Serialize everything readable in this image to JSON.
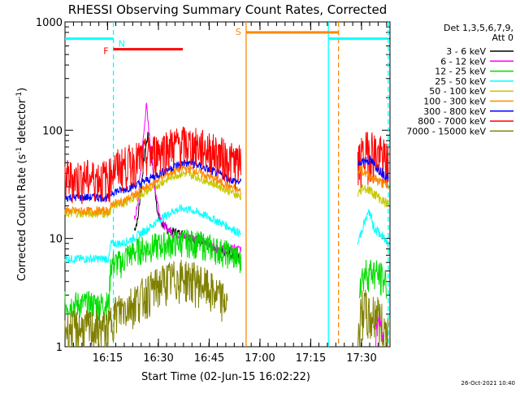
{
  "chart_data": {
    "type": "line",
    "title": "RHESSI Observing Summary Count Rates, Corrected",
    "xlabel": "Start Time (02-Jun-15 16:02:22)",
    "ylabel": "Corrected Count Rate (s-1 detector-1)",
    "ylabel_main": "Corrected Count Rate (s",
    "ylabel_mid": " detector",
    "ylabel_end": ")",
    "ylabel_sup": "-1",
    "yscale": "log",
    "ylim": [
      1,
      1000
    ],
    "xlim_minutes": [
      0,
      96
    ],
    "x_ticks": [
      {
        "label": "16:15",
        "minutes": 12.6
      },
      {
        "label": "16:30",
        "minutes": 27.6
      },
      {
        "label": "16:45",
        "minutes": 42.6
      },
      {
        "label": "17:00",
        "minutes": 57.6
      },
      {
        "label": "17:15",
        "minutes": 72.6
      },
      {
        "label": "17:30",
        "minutes": 87.6
      }
    ],
    "y_ticks": [
      {
        "label": "1",
        "value": 1
      },
      {
        "label": "10",
        "value": 10
      },
      {
        "label": "100",
        "value": 100
      },
      {
        "label": "1000",
        "value": 1000
      }
    ],
    "legend_header": [
      "Det 1,3,5,6,7,9,",
      "Att 0"
    ],
    "series": [
      {
        "name": "3 - 6 keV",
        "color": "#000000",
        "points": [
          [
            20.5,
            12
          ],
          [
            21.5,
            15
          ],
          [
            22.5,
            30
          ],
          [
            23.5,
            60
          ],
          [
            24.5,
            90
          ],
          [
            25.5,
            60
          ],
          [
            26.5,
            30
          ],
          [
            27.5,
            16
          ],
          [
            30,
            12
          ],
          [
            35,
            11
          ],
          [
            40,
            9
          ],
          [
            45,
            8
          ],
          [
            50,
            7
          ],
          [
            52,
            6.5
          ]
        ]
      },
      {
        "name": "6 - 12 keV",
        "color": "#ff00ff",
        "points": [
          [
            20.5,
            15
          ],
          [
            21.5,
            20
          ],
          [
            22.5,
            50
          ],
          [
            23.5,
            110
          ],
          [
            24,
            180
          ],
          [
            24.5,
            120
          ],
          [
            25.5,
            60
          ],
          [
            26.5,
            30
          ],
          [
            27.5,
            20
          ],
          [
            28.5,
            14
          ],
          [
            32,
            11
          ],
          [
            36,
            10.5
          ],
          [
            40,
            10
          ],
          [
            45,
            8
          ],
          [
            50,
            8
          ],
          [
            52,
            8
          ]
        ]
      },
      {
        "name": "12 - 25 keV",
        "color": "#00dd00",
        "points": [
          [
            0,
            2.5
          ],
          [
            10,
            2.5
          ],
          [
            13,
            2.5
          ],
          [
            13.5,
            6
          ],
          [
            17,
            6
          ],
          [
            18,
            7
          ],
          [
            22,
            8
          ],
          [
            26,
            8.5
          ],
          [
            30,
            9
          ],
          [
            35,
            9.5
          ],
          [
            40,
            9
          ],
          [
            45,
            8
          ],
          [
            50,
            7
          ],
          [
            52,
            6
          ]
        ]
      },
      {
        "name": "25 - 50 keV",
        "color": "#00ffff",
        "points": [
          [
            0,
            6.5
          ],
          [
            13,
            6.5
          ],
          [
            13.5,
            9
          ],
          [
            17,
            9
          ],
          [
            20,
            10
          ],
          [
            24,
            12
          ],
          [
            28,
            15
          ],
          [
            32,
            18
          ],
          [
            35,
            19
          ],
          [
            38,
            18
          ],
          [
            42,
            16
          ],
          [
            46,
            14
          ],
          [
            50,
            12
          ],
          [
            52,
            11
          ]
        ]
      },
      {
        "name": "50 - 100 keV",
        "color": "#c8c800",
        "points": [
          [
            0,
            17
          ],
          [
            13,
            17
          ],
          [
            14,
            20
          ],
          [
            17,
            21
          ],
          [
            22,
            25
          ],
          [
            28,
            32
          ],
          [
            32,
            38
          ],
          [
            35,
            40
          ],
          [
            38,
            38
          ],
          [
            42,
            34
          ],
          [
            46,
            30
          ],
          [
            50,
            26
          ],
          [
            52,
            24
          ]
        ]
      },
      {
        "name": "100 - 300 keV",
        "color": "#ff8800",
        "points": [
          [
            0,
            18
          ],
          [
            13,
            18
          ],
          [
            14,
            21
          ],
          [
            17,
            22
          ],
          [
            22,
            27
          ],
          [
            28,
            36
          ],
          [
            32,
            42
          ],
          [
            35,
            45
          ],
          [
            38,
            43
          ],
          [
            42,
            38
          ],
          [
            46,
            33
          ],
          [
            50,
            29
          ],
          [
            52,
            27
          ]
        ]
      },
      {
        "name": "300 - 800 keV",
        "color": "#0000ff",
        "points": [
          [
            0,
            24
          ],
          [
            13,
            24
          ],
          [
            14,
            27
          ],
          [
            17,
            28
          ],
          [
            22,
            32
          ],
          [
            28,
            40
          ],
          [
            32,
            46
          ],
          [
            35,
            50
          ],
          [
            38,
            49
          ],
          [
            42,
            44
          ],
          [
            46,
            39
          ],
          [
            50,
            34
          ],
          [
            52,
            33
          ]
        ]
      },
      {
        "name": "800 - 7000 keV",
        "color": "#ff0000",
        "points": [
          [
            0,
            37
          ],
          [
            13,
            37
          ],
          [
            14,
            45
          ],
          [
            17,
            48
          ],
          [
            22,
            55
          ],
          [
            28,
            68
          ],
          [
            32,
            74
          ],
          [
            35,
            76
          ],
          [
            38,
            74
          ],
          [
            42,
            68
          ],
          [
            46,
            60
          ],
          [
            50,
            52
          ],
          [
            52,
            50
          ]
        ]
      },
      {
        "name": "7000 - 15000 keV",
        "color": "#808000",
        "points": [
          [
            0,
            1.5
          ],
          [
            13,
            1.5
          ],
          [
            14,
            2
          ],
          [
            20,
            2.6
          ],
          [
            26,
            3.5
          ],
          [
            30,
            4.2
          ],
          [
            35,
            4.5
          ],
          [
            40,
            4
          ],
          [
            45,
            3
          ],
          [
            48,
            2.6
          ]
        ]
      }
    ],
    "segment_b": {
      "x_range": [
        86.5,
        95.5
      ],
      "series": [
        {
          "name": "800 - 7000 keV",
          "color": "#ff0000",
          "points": [
            [
              86.5,
              50
            ],
            [
              88,
              58
            ],
            [
              90,
              70
            ],
            [
              92,
              62
            ],
            [
              94,
              55
            ],
            [
              95.5,
              50
            ]
          ]
        },
        {
          "name": "300 - 800 keV",
          "color": "#0000ff",
          "points": [
            [
              86.5,
              47
            ],
            [
              88,
              52
            ],
            [
              90,
              53
            ],
            [
              92,
              46
            ],
            [
              94,
              40
            ],
            [
              95.5,
              37
            ]
          ]
        },
        {
          "name": "100 - 300 keV",
          "color": "#ff8800",
          "points": [
            [
              86.5,
              45
            ],
            [
              88,
              42
            ],
            [
              90,
              38
            ],
            [
              92,
              35
            ],
            [
              94,
              32
            ],
            [
              95.5,
              30
            ]
          ]
        },
        {
          "name": "50 - 100 keV",
          "color": "#c8c800",
          "points": [
            [
              86.5,
              25
            ],
            [
              88,
              30
            ],
            [
              90,
              28
            ],
            [
              92,
              25
            ],
            [
              94,
              22
            ],
            [
              95.5,
              21
            ]
          ]
        },
        {
          "name": "25 - 50 keV",
          "color": "#00ffff",
          "points": [
            [
              86.5,
              9
            ],
            [
              88,
              13
            ],
            [
              90,
              18
            ],
            [
              91,
              13
            ],
            [
              93,
              11
            ],
            [
              95.5,
              9
            ]
          ]
        },
        {
          "name": "12 - 25 keV",
          "color": "#00dd00",
          "points": [
            [
              87,
              4
            ],
            [
              89,
              5
            ],
            [
              91,
              5
            ],
            [
              93,
              4.5
            ],
            [
              95,
              4
            ]
          ]
        },
        {
          "name": "7000 - 15000 keV",
          "color": "#808000",
          "points": [
            [
              86.5,
              1.2
            ],
            [
              88,
              2.5
            ],
            [
              90,
              1.8
            ],
            [
              92,
              2.2
            ],
            [
              94,
              1.5
            ],
            [
              95.5,
              1.4
            ]
          ]
        },
        {
          "name": "6 - 12 keV",
          "color": "#ff00ff",
          "points": [
            [
              91.8,
              1
            ],
            [
              92,
              1.6
            ],
            [
              93,
              1.8
            ],
            [
              93.8,
              1.3
            ],
            [
              94,
              1
            ]
          ]
        }
      ]
    },
    "flag_bars": [
      {
        "label": "N",
        "color": "#00ffff",
        "x_range": [
          0,
          14.3
        ],
        "value": 700
      },
      {
        "label": "N",
        "color": "#00ffff",
        "x_range": [
          77.8,
          95.5
        ],
        "value": 700
      },
      {
        "label": "F",
        "color": "#ff0000",
        "x_range": [
          14.3,
          34.8
        ],
        "value": 560
      },
      {
        "label": "S",
        "color": "#ff8800",
        "x_range": [
          53.5,
          80.8
        ],
        "value": 800
      }
    ],
    "markers": [
      {
        "x_minutes": 14.3,
        "color": "#00ffff",
        "style": "dashed"
      },
      {
        "x_minutes": 53.5,
        "color": "#ff8800",
        "style": "solid"
      },
      {
        "x_minutes": 77.8,
        "color": "#00ffff",
        "style": "solid"
      },
      {
        "x_minutes": 80.8,
        "color": "#ff8800",
        "style": "dashed"
      },
      {
        "x_minutes": 95.5,
        "color": "#00ffff",
        "style": "dashed"
      }
    ],
    "gaps_minutes": [
      [
        52,
        86.5
      ]
    ],
    "timestamp": "26-Oct-2021 10:40"
  }
}
